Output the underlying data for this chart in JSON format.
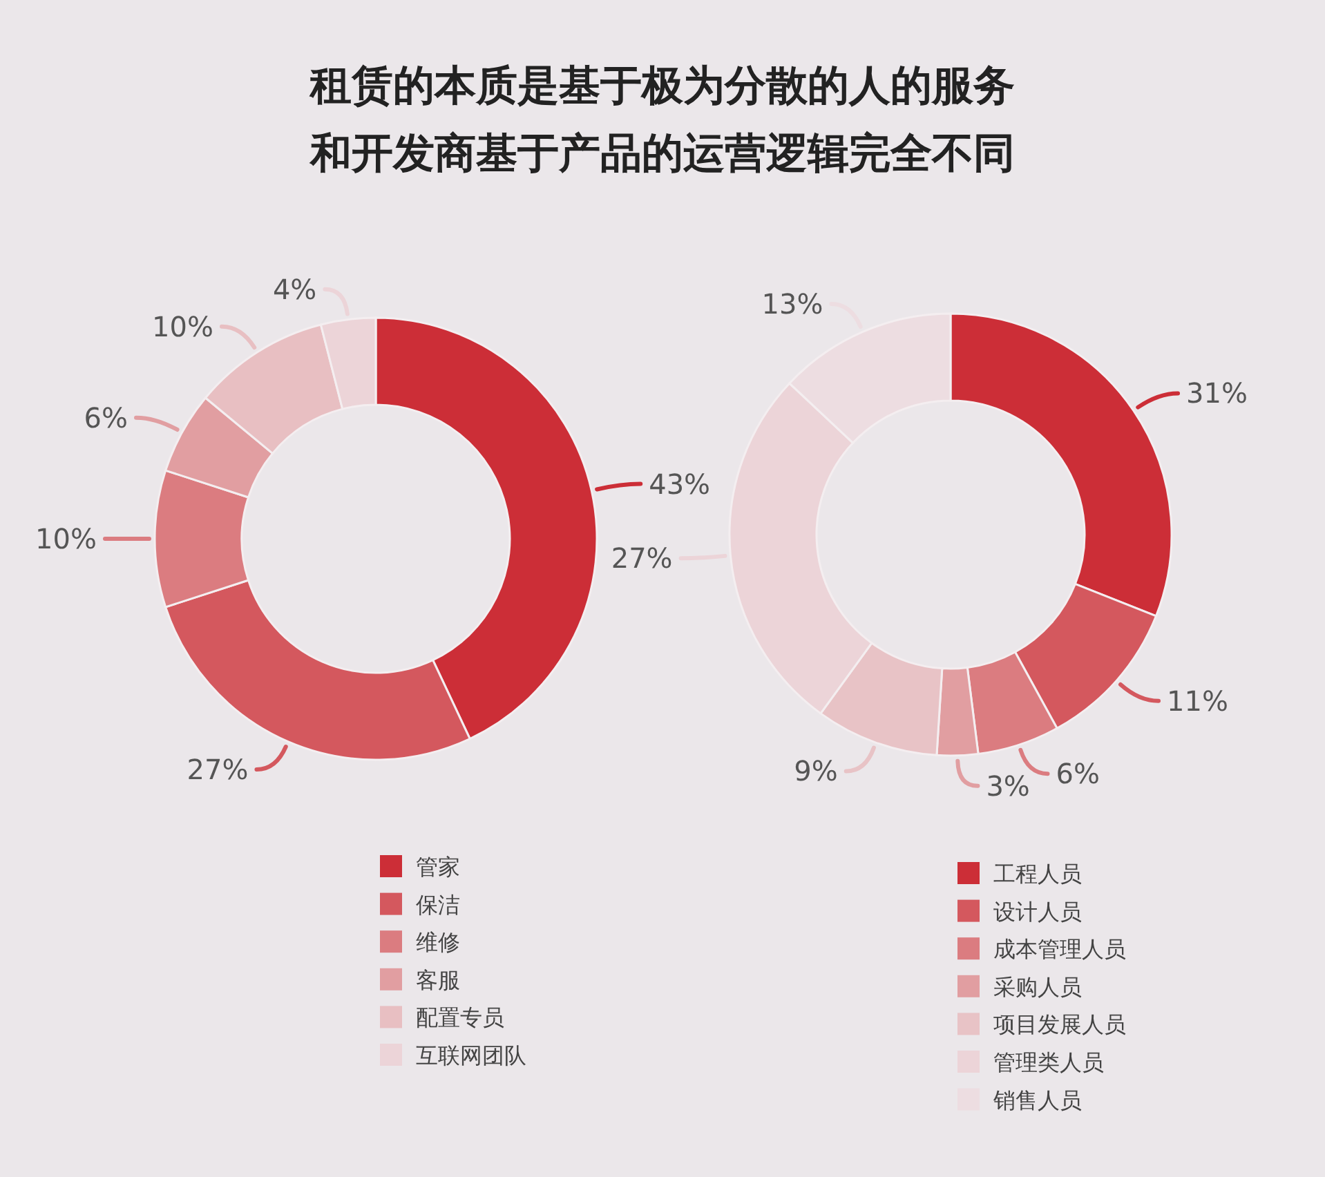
{
  "chart_data": [
    {
      "type": "donut",
      "title": "租赁的本质是基于极为分散的人的服务",
      "subtitle": "和开发商基于产品的运营逻辑完全不同",
      "categories": [
        "管家",
        "保洁",
        "维修",
        "客服",
        "配置专员",
        "互联网团队"
      ],
      "values": [
        43,
        27,
        10,
        6,
        10,
        4
      ],
      "value_labels": [
        "43%",
        "27%",
        "10%",
        "6%",
        "10%",
        "4%"
      ],
      "colors": [
        "#cc2e37",
        "#d4585e",
        "#db7c80",
        "#e19ea1",
        "#e8bfc2",
        "#ecd4d8"
      ],
      "legend": "bottom"
    },
    {
      "type": "donut",
      "categories": [
        "工程人员",
        "设计人员",
        "成本管理人员",
        "采购人员",
        "项目发展人员",
        "管理类人员",
        "销售人员"
      ],
      "values": [
        31,
        11,
        6,
        3,
        9,
        27,
        13
      ],
      "value_labels": [
        "31%",
        "11%",
        "6%",
        "3%",
        "9%",
        "27%",
        "13%"
      ],
      "colors": [
        "#cc2e37",
        "#d4585e",
        "#db7c80",
        "#e19ea1",
        "#e8c3c6",
        "#ecd4d8",
        "#eddde1"
      ],
      "legend": "bottom"
    }
  ]
}
